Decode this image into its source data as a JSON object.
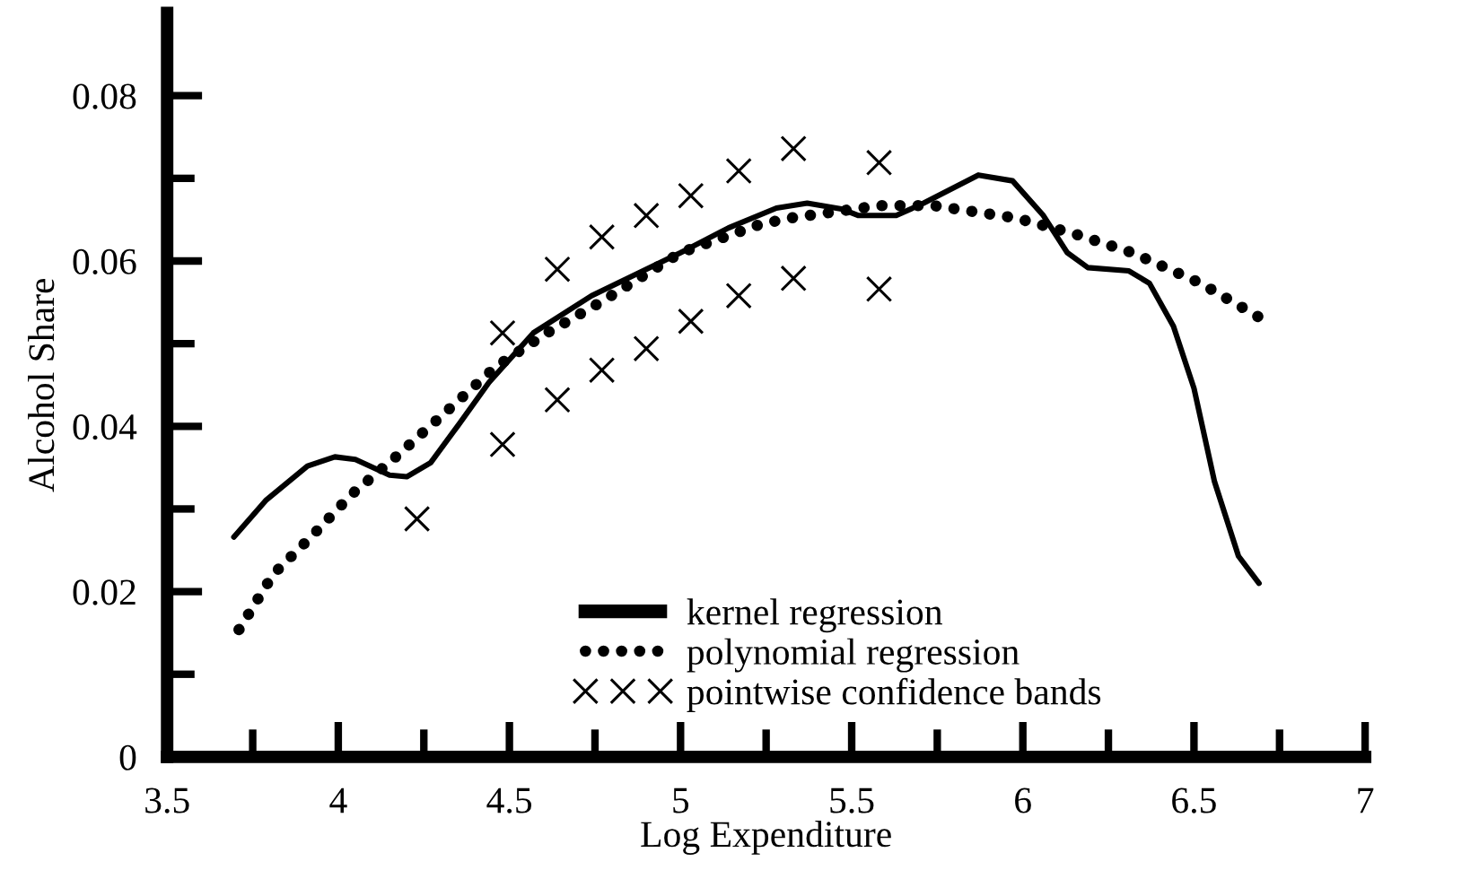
{
  "chart_data": {
    "type": "line",
    "xlabel": "Log Expenditure",
    "ylabel": "Alcohol Share",
    "xlim": [
      3.5,
      7
    ],
    "ylim": [
      0,
      0.09
    ],
    "xticks": [
      3.5,
      {
        "value": 3.75,
        "label": null
      },
      4,
      {
        "value": 4.25,
        "label": null
      },
      4.5,
      {
        "value": 4.75,
        "label": null
      },
      5,
      {
        "value": 5.25,
        "label": null
      },
      5.5,
      {
        "value": 5.75,
        "label": null
      },
      6,
      {
        "value": 6.25,
        "label": null
      },
      6.5,
      {
        "value": 6.75,
        "label": null
      },
      7
    ],
    "yticks": [
      0,
      {
        "value": 0.01,
        "label": null
      },
      0.02,
      {
        "value": 0.03,
        "label": null
      },
      0.04,
      {
        "value": 0.05,
        "label": null
      },
      0.06,
      {
        "value": 0.07,
        "label": null
      },
      0.08
    ],
    "grid": false,
    "legend": "bottom",
    "series": [
      {
        "name": "kernel regression",
        "line_style": "solid",
        "color": "#000000",
        "x": [
          3.695,
          3.79,
          3.91,
          3.99,
          4.05,
          4.15,
          4.2,
          4.27,
          4.35,
          4.44,
          4.57,
          4.74,
          4.87,
          5.0,
          5.14,
          5.28,
          5.37,
          5.47,
          5.52,
          5.63,
          5.71,
          5.87,
          5.97,
          6.06,
          6.13,
          6.19,
          6.31,
          6.37,
          6.44,
          6.5,
          6.56,
          6.63,
          6.69
        ],
        "values": [
          0.0266,
          0.0311,
          0.0352,
          0.0363,
          0.036,
          0.0341,
          0.0339,
          0.0356,
          0.0401,
          0.0453,
          0.0513,
          0.0558,
          0.0584,
          0.061,
          0.064,
          0.0664,
          0.067,
          0.0663,
          0.0655,
          0.0655,
          0.067,
          0.0704,
          0.0697,
          0.0655,
          0.061,
          0.0592,
          0.0588,
          0.0573,
          0.0521,
          0.0446,
          0.0333,
          0.0243,
          0.021
        ]
      },
      {
        "name": "polynomial regression",
        "line_style": "dotted",
        "color": "#000000",
        "x": [
          3.71,
          3.81,
          3.92,
          4.04,
          4.16,
          4.3,
          4.46,
          4.61,
          4.77,
          5.0,
          5.23,
          5.32,
          5.58,
          5.74,
          5.98,
          6.15,
          6.32,
          6.52,
          6.69
        ],
        "values": [
          0.0154,
          0.0221,
          0.0266,
          0.0318,
          0.036,
          0.0412,
          0.0472,
          0.0513,
          0.0551,
          0.061,
          0.0644,
          0.0652,
          0.0667,
          0.0667,
          0.0652,
          0.0633,
          0.061,
          0.0573,
          0.0532
        ]
      },
      {
        "name": "pointwise confidence bands",
        "type": "scatter",
        "marker": "cross",
        "color": "#000000",
        "x": [
          4.48,
          4.64,
          4.77,
          4.9,
          5.03,
          5.17,
          5.33,
          5.58,
          4.23,
          4.48,
          4.64,
          4.77,
          4.9,
          5.03,
          5.17,
          5.33,
          5.58
        ],
        "values": [
          0.0513,
          0.059,
          0.0629,
          0.0655,
          0.0679,
          0.0709,
          0.0736,
          0.0719,
          0.0288,
          0.0378,
          0.0432,
          0.0468,
          0.0494,
          0.0527,
          0.0558,
          0.0579,
          0.0566
        ]
      }
    ]
  }
}
